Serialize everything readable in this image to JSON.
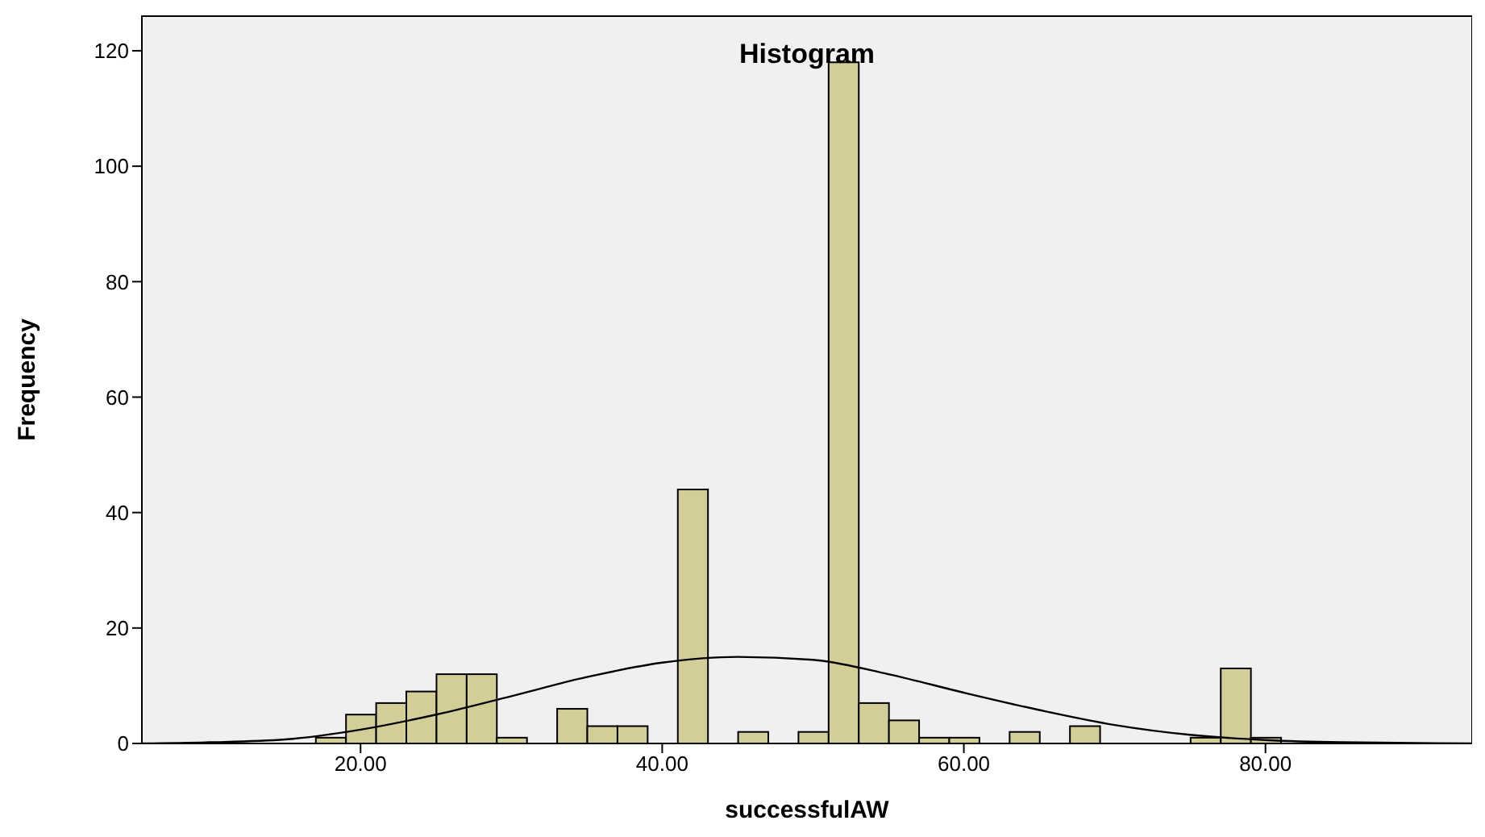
{
  "chart_data": {
    "type": "histogram",
    "title": "Histogram",
    "xlabel": "successfulAW",
    "ylabel": "Frequency",
    "bins": [
      17,
      19,
      21,
      23,
      25,
      27,
      29,
      31,
      33,
      35,
      37,
      39,
      41,
      43,
      45,
      47,
      49,
      51,
      53,
      55,
      57,
      59,
      61,
      63,
      65,
      67,
      69,
      71,
      73,
      75,
      77,
      79,
      81
    ],
    "series": [
      {
        "color": "#d3ce97",
        "values": [
          1,
          5,
          7,
          9,
          12,
          12,
          1,
          0,
          6,
          3,
          3,
          0,
          44,
          0,
          2,
          0,
          2,
          118,
          7,
          4,
          1,
          1,
          0,
          2,
          0,
          3,
          0,
          0,
          0,
          1,
          13,
          1
        ]
      },
      {
        "type": "line",
        "color": "#000000",
        "x": [
          5.5,
          10,
          15,
          20,
          25,
          30,
          35,
          40,
          45,
          50,
          55,
          60,
          65,
          70,
          75,
          80,
          85,
          93.7
        ],
        "values": [
          0,
          0.2,
          0.7,
          2.4,
          5,
          8.2,
          11.5,
          14,
          15,
          14.5,
          12,
          8.8,
          5.8,
          3.2,
          1.5,
          0.6,
          0.2,
          0
        ]
      }
    ],
    "xlim": [
      5.5,
      93.7
    ],
    "xticks": [
      {
        "value": 20,
        "label": "20.00"
      },
      {
        "value": 40,
        "label": "40.00"
      },
      {
        "value": 60,
        "label": "60.00"
      },
      {
        "value": 80,
        "label": "80.00"
      }
    ],
    "ylim": [
      0,
      126
    ],
    "yticks": [
      0,
      20,
      40,
      60,
      80,
      100,
      120
    ],
    "marker": "none"
  }
}
